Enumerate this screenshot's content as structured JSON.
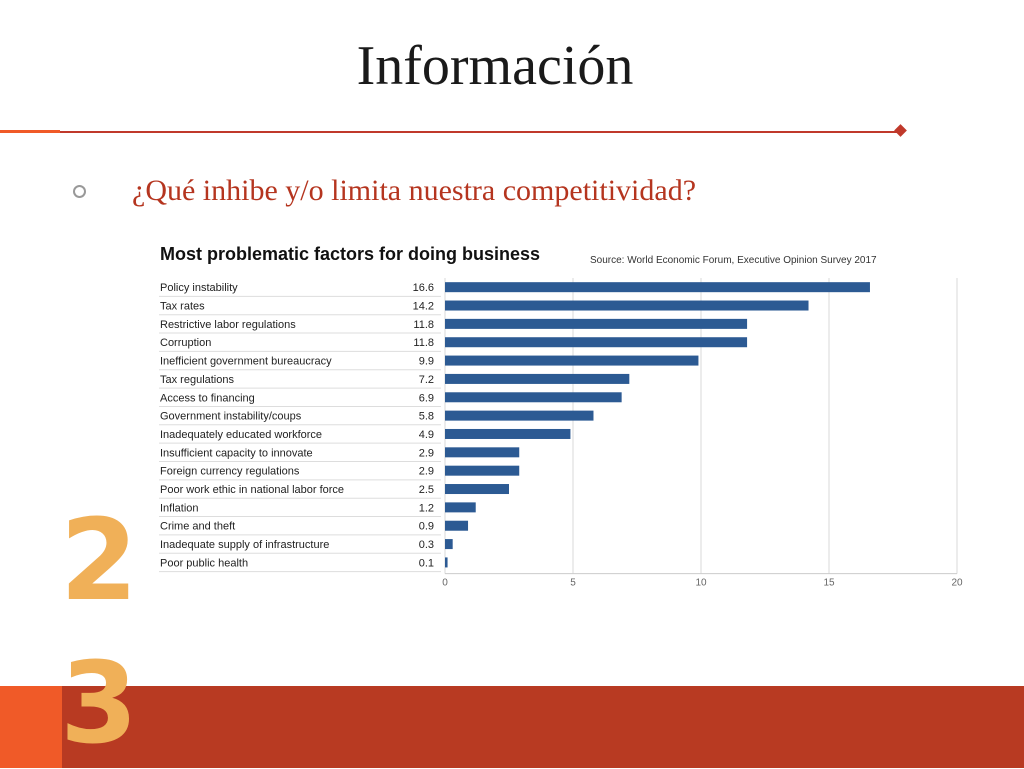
{
  "slide": {
    "title": "Información",
    "question": "¿Qué inhibe y/o limita nuestra competitividad?",
    "digits": [
      "2",
      "3"
    ]
  },
  "colors": {
    "bar": "#2c5a93",
    "accent": "#c0392b",
    "footer": "#b83a22",
    "footer_left": "#f05a28",
    "digit": "#f0b058"
  },
  "chart_data": {
    "type": "bar",
    "orientation": "horizontal",
    "title": "Most problematic factors for doing business",
    "source": "Source: World Economic Forum, Executive Opinion Survey 2017",
    "categories": [
      "Policy instability",
      "Tax rates",
      "Restrictive labor regulations",
      "Corruption",
      "Inefficient government bureaucracy",
      "Tax regulations",
      "Access to financing",
      "Government instability/coups",
      "Inadequately educated workforce",
      "Insufficient capacity to innovate",
      "Foreign currency regulations",
      "Poor work ethic in national labor force",
      "Inflation",
      "Crime and theft",
      "Inadequate supply of infrastructure",
      "Poor public health"
    ],
    "values": [
      16.6,
      14.2,
      11.8,
      11.8,
      9.9,
      7.2,
      6.9,
      5.8,
      4.9,
      2.9,
      2.9,
      2.5,
      1.2,
      0.9,
      0.3,
      0.1
    ],
    "value_labels": [
      "16.6",
      "14.2",
      "11.8",
      "11.8",
      "9.9",
      "7.2",
      "6.9",
      "5.8",
      "4.9",
      "2.9",
      "2.9",
      "2.5",
      "1.2",
      "0.9",
      "0.3",
      "0.1"
    ],
    "xlim": [
      0,
      20
    ],
    "xticks": [
      0,
      5,
      10,
      15,
      20
    ],
    "xtick_labels": [
      "0",
      "5",
      "10",
      "15",
      "20"
    ],
    "grid": true,
    "legend": "none"
  }
}
